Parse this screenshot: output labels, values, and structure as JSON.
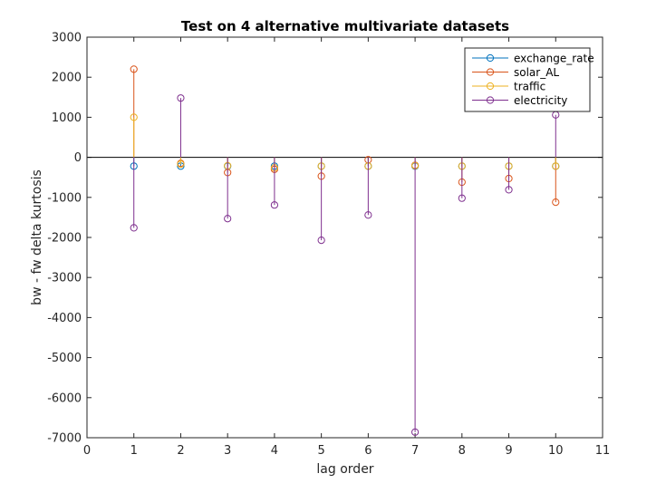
{
  "chart_data": {
    "type": "stem",
    "title": "Test on 4 alternative multivariate datasets",
    "xlabel": "lag order",
    "ylabel": "bw - fw delta kurtosis",
    "xlim": [
      0,
      11
    ],
    "ylim": [
      -7000,
      3000
    ],
    "xticks": [
      0,
      1,
      2,
      3,
      4,
      5,
      6,
      7,
      8,
      9,
      10,
      11
    ],
    "yticks": [
      -7000,
      -6000,
      -5000,
      -4000,
      -3000,
      -2000,
      -1000,
      0,
      1000,
      2000,
      3000
    ],
    "baseline": 0,
    "legend_position": "top-right",
    "x": [
      1,
      2,
      3,
      4,
      5,
      6,
      7,
      8,
      9,
      10
    ],
    "series": [
      {
        "name": "exchange_rate",
        "color": "#0072BD",
        "values": [
          -220,
          -220,
          -220,
          -220,
          -220,
          -220,
          -220,
          -220,
          -220,
          -220
        ]
      },
      {
        "name": "solar_AL",
        "color": "#D95319",
        "values": [
          2200,
          -150,
          -380,
          -300,
          -470,
          -60,
          -200,
          -620,
          -530,
          -1120
        ]
      },
      {
        "name": "traffic",
        "color": "#EDB120",
        "values": [
          1000,
          -170,
          -210,
          -260,
          -220,
          -220,
          -210,
          -220,
          -220,
          -220
        ]
      },
      {
        "name": "electricity",
        "color": "#7E2F8E",
        "values": [
          -1760,
          1480,
          -1530,
          -1190,
          -2070,
          -1440,
          -6860,
          -1020,
          -810,
          1060
        ]
      }
    ]
  }
}
